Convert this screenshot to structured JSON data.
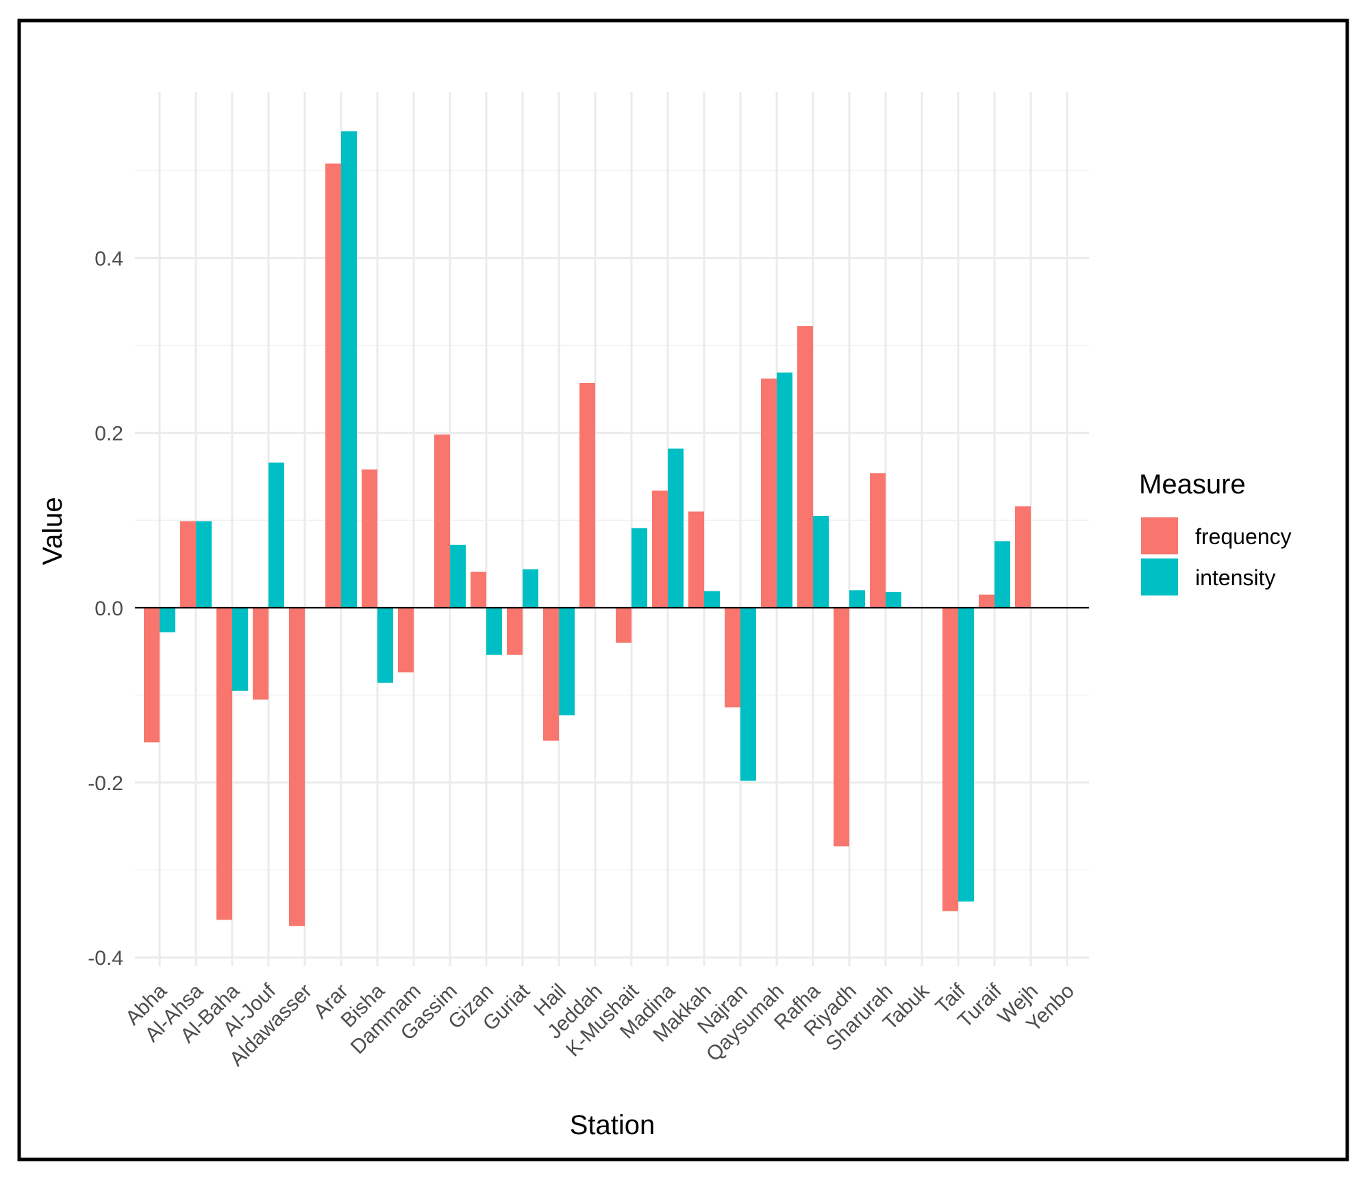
{
  "chart_data": {
    "type": "bar",
    "title": "",
    "xlabel": "Station",
    "ylabel": "Value",
    "ylim": [
      -0.41,
      0.59
    ],
    "yticks": [
      -0.4,
      -0.2,
      0.0,
      0.2,
      0.4
    ],
    "ytick_labels": [
      "-0.4",
      "-0.2",
      "0.0",
      "0.2",
      "0.4"
    ],
    "grid": true,
    "legend": {
      "title": "Measure",
      "placement": "right"
    },
    "categories": [
      "Abha",
      "Al-Ahsa",
      "Al-Baha",
      "Al-Jouf",
      "Aldawasser",
      "Arar",
      "Bisha",
      "Dammam",
      "Gassim",
      "Gizan",
      "Guriat",
      "Hail",
      "Jeddah",
      "K-Mushait",
      "Madina",
      "Makkah",
      "Najran",
      "Qaysumah",
      "Rafha",
      "Riyadh",
      "Sharurah",
      "Tabuk",
      "Taif",
      "Turaif",
      "Wejh",
      "Yenbo"
    ],
    "series": [
      {
        "name": "frequency",
        "color": "#F8766D",
        "values": [
          -0.154,
          0.099,
          -0.357,
          -0.105,
          -0.364,
          0.508,
          0.158,
          -0.074,
          0.198,
          0.041,
          -0.054,
          -0.152,
          0.257,
          -0.04,
          0.134,
          0.11,
          -0.114,
          0.262,
          0.322,
          -0.273,
          0.154,
          null,
          -0.347,
          0.015,
          0.116,
          null
        ]
      },
      {
        "name": "intensity",
        "color": "#00BFC4",
        "values": [
          -0.028,
          0.099,
          -0.095,
          0.166,
          null,
          0.545,
          -0.086,
          null,
          0.072,
          -0.054,
          0.044,
          -0.123,
          null,
          0.091,
          0.182,
          0.019,
          -0.198,
          0.269,
          0.105,
          0.02,
          0.018,
          null,
          -0.336,
          0.076,
          null,
          null
        ]
      }
    ]
  }
}
